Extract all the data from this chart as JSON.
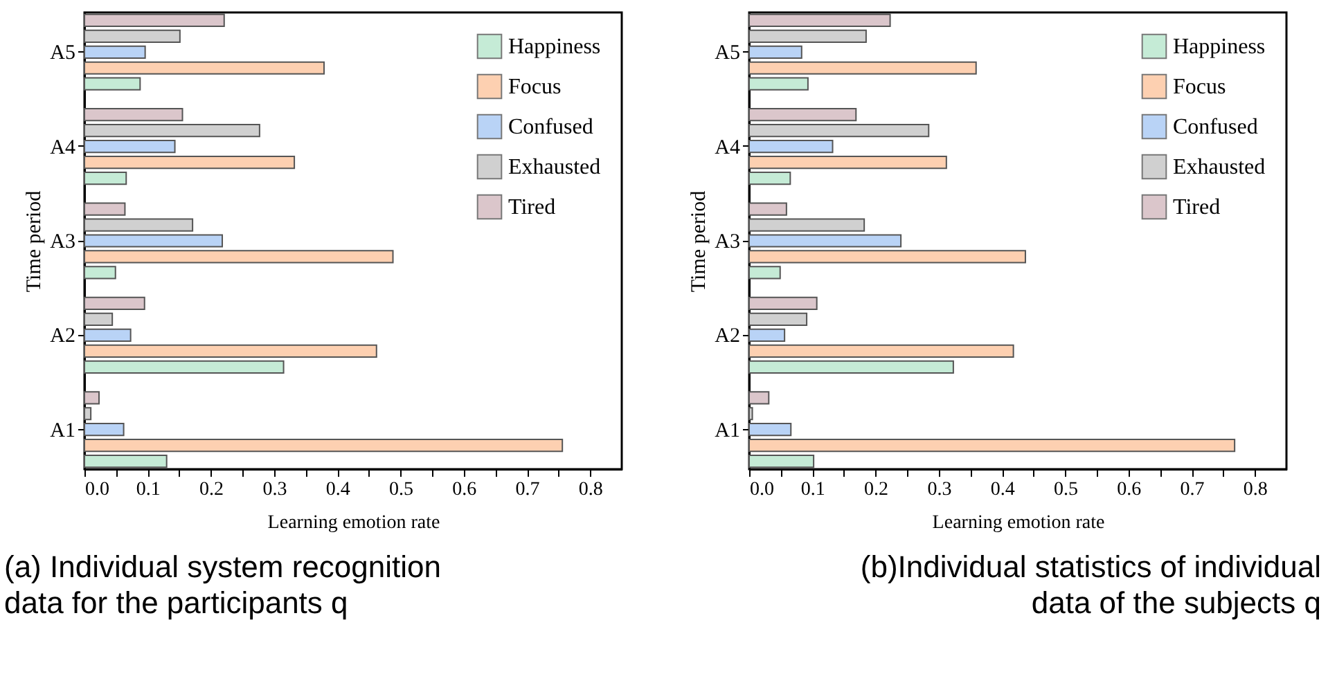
{
  "chart_data": [
    {
      "type": "bar",
      "orientation": "horizontal",
      "title": "(a) Individual system recognition\ndata for the participants q",
      "xlabel": "Learning emotion rate",
      "ylabel": "Time period",
      "categories": [
        "A5",
        "A4",
        "A3",
        "A2",
        "A1"
      ],
      "legend": "top right",
      "xlim": [
        0,
        0.85
      ],
      "xticks": [
        {
          "value": 0,
          "label": "0.0"
        },
        {
          "value": 0.05,
          "label": null
        },
        0.1,
        {
          "value": 0.15,
          "label": null
        },
        0.2,
        {
          "value": 0.25,
          "label": null
        },
        0.3,
        {
          "value": 0.35,
          "label": null
        },
        0.4,
        {
          "value": 0.45,
          "label": null
        },
        0.5,
        {
          "value": 0.55,
          "label": null
        },
        0.6,
        {
          "value": 0.65,
          "label": null
        },
        0.7,
        {
          "value": 0.75,
          "label": null
        },
        0.8
      ],
      "series": [
        {
          "name": "Happiness",
          "color": "#c5ebd6",
          "values": [
            0.088,
            0.066,
            0.049,
            0.315,
            0.13
          ]
        },
        {
          "name": "Focus",
          "color": "#fdd0b1",
          "values": [
            0.379,
            0.332,
            0.488,
            0.462,
            0.756
          ]
        },
        {
          "name": "Confused",
          "color": "#b9d3f6",
          "values": [
            0.096,
            0.143,
            0.218,
            0.073,
            0.062
          ]
        },
        {
          "name": "Exhausted",
          "color": "#d0d0d0",
          "values": [
            0.151,
            0.277,
            0.171,
            0.044,
            0.01
          ]
        },
        {
          "name": "Tired",
          "color": "#dbc6cb",
          "values": [
            0.221,
            0.155,
            0.064,
            0.095,
            0.023
          ]
        }
      ]
    },
    {
      "type": "bar",
      "orientation": "horizontal",
      "title": "(b)Individual statistics of individual\ndata of the subjects q",
      "xlabel": "Learning emotion rate",
      "ylabel": "Time period",
      "categories": [
        "A5",
        "A4",
        "A3",
        "A2",
        "A1"
      ],
      "legend": "top right",
      "xlim": [
        0,
        0.85
      ],
      "xticks": [
        {
          "value": 0,
          "label": "0.0"
        },
        {
          "value": 0.05,
          "label": null
        },
        0.1,
        {
          "value": 0.15,
          "label": null
        },
        0.2,
        {
          "value": 0.25,
          "label": null
        },
        0.3,
        {
          "value": 0.35,
          "label": null
        },
        0.4,
        {
          "value": 0.45,
          "label": null
        },
        0.5,
        {
          "value": 0.55,
          "label": null
        },
        0.6,
        {
          "value": 0.65,
          "label": null
        },
        0.7,
        {
          "value": 0.75,
          "label": null
        },
        0.8
      ],
      "series": [
        {
          "name": "Happiness",
          "color": "#c5ebd6",
          "values": [
            0.093,
            0.065,
            0.049,
            0.323,
            0.102
          ]
        },
        {
          "name": "Focus",
          "color": "#fdd0b1",
          "values": [
            0.359,
            0.312,
            0.437,
            0.418,
            0.768
          ]
        },
        {
          "name": "Confused",
          "color": "#b9d3f6",
          "values": [
            0.083,
            0.132,
            0.24,
            0.056,
            0.066
          ]
        },
        {
          "name": "Exhausted",
          "color": "#d0d0d0",
          "values": [
            0.185,
            0.284,
            0.182,
            0.091,
            0.005
          ]
        },
        {
          "name": "Tired",
          "color": "#dbc6cb",
          "values": [
            0.223,
            0.169,
            0.059,
            0.107,
            0.031
          ]
        }
      ]
    }
  ]
}
